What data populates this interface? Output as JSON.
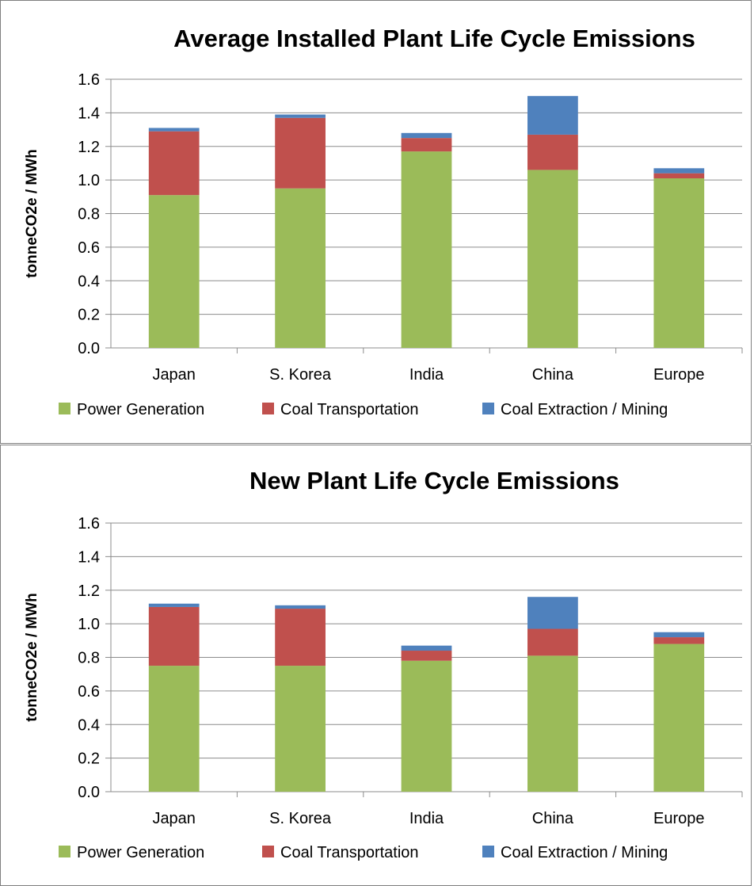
{
  "chart_data": [
    {
      "type": "bar",
      "stacked": true,
      "title": "Average Installed Plant Life Cycle Emissions",
      "ylabel": "tonneCO2e / MWh",
      "xlabel": "",
      "ylim": [
        0,
        1.6
      ],
      "yticks": [
        "0.0",
        "0.2",
        "0.4",
        "0.6",
        "0.8",
        "1.0",
        "1.2",
        "1.4",
        "1.6"
      ],
      "grid": true,
      "legend_position": "bottom",
      "categories": [
        "Japan",
        "S. Korea",
        "India",
        "China",
        "Europe"
      ],
      "series": [
        {
          "name": "Power Generation",
          "color": "#9bbb59",
          "values": [
            0.91,
            0.95,
            1.17,
            1.06,
            1.01
          ]
        },
        {
          "name": "Coal Transportation",
          "color": "#c0504d",
          "values": [
            0.38,
            0.42,
            0.08,
            0.21,
            0.03
          ]
        },
        {
          "name": "Coal Extraction / Mining",
          "color": "#4f81bd",
          "values": [
            0.02,
            0.02,
            0.03,
            0.23,
            0.03
          ]
        }
      ]
    },
    {
      "type": "bar",
      "stacked": true,
      "title": "New Plant Life Cycle Emissions",
      "ylabel": "tonneCO2e / MWh",
      "xlabel": "",
      "ylim": [
        0,
        1.6
      ],
      "yticks": [
        "0.0",
        "0.2",
        "0.4",
        "0.6",
        "0.8",
        "1.0",
        "1.2",
        "1.4",
        "1.6"
      ],
      "grid": true,
      "legend_position": "bottom",
      "categories": [
        "Japan",
        "S. Korea",
        "India",
        "China",
        "Europe"
      ],
      "series": [
        {
          "name": "Power Generation",
          "color": "#9bbb59",
          "values": [
            0.75,
            0.75,
            0.78,
            0.81,
            0.88
          ]
        },
        {
          "name": "Coal Transportation",
          "color": "#c0504d",
          "values": [
            0.35,
            0.34,
            0.06,
            0.16,
            0.04
          ]
        },
        {
          "name": "Coal Extraction / Mining",
          "color": "#4f81bd",
          "values": [
            0.02,
            0.02,
            0.03,
            0.19,
            0.03
          ]
        }
      ]
    }
  ]
}
